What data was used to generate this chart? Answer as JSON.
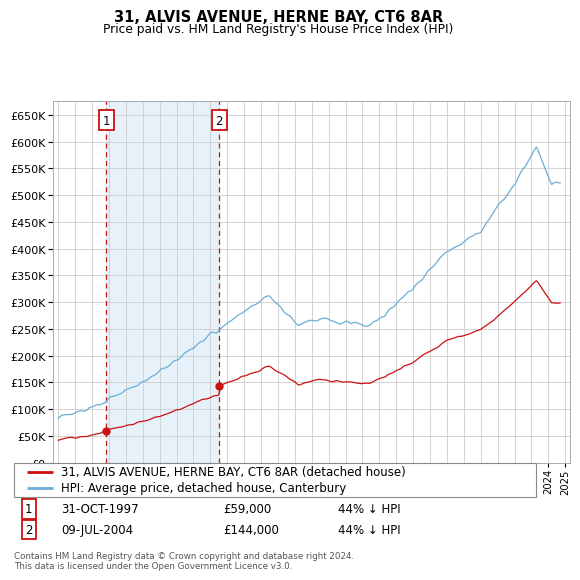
{
  "title": "31, ALVIS AVENUE, HERNE BAY, CT6 8AR",
  "subtitle": "Price paid vs. HM Land Registry's House Price Index (HPI)",
  "legend_line1": "31, ALVIS AVENUE, HERNE BAY, CT6 8AR (detached house)",
  "legend_line2": "HPI: Average price, detached house, Canterbury",
  "annotation1_date": "31-OCT-1997",
  "annotation1_price": "£59,000",
  "annotation1_hpi": "44% ↓ HPI",
  "annotation2_date": "09-JUL-2004",
  "annotation2_price": "£144,000",
  "annotation2_hpi": "44% ↓ HPI",
  "footer": "Contains HM Land Registry data © Crown copyright and database right 2024.\nThis data is licensed under the Open Government Licence v3.0.",
  "ylim": [
    0,
    675000
  ],
  "yticks": [
    0,
    50000,
    100000,
    150000,
    200000,
    250000,
    300000,
    350000,
    400000,
    450000,
    500000,
    550000,
    600000,
    650000
  ],
  "hpi_color": "#6baed6",
  "hpi_fill_color": "#d6e8f5",
  "price_color": "#cc1111",
  "background_color": "#ffffff",
  "grid_color": "#cccccc",
  "purchase1_x": 1997.83,
  "purchase1_y": 59000,
  "purchase2_x": 2004.52,
  "purchase2_y": 144000,
  "xlim_left": 1994.7,
  "xlim_right": 2025.3
}
